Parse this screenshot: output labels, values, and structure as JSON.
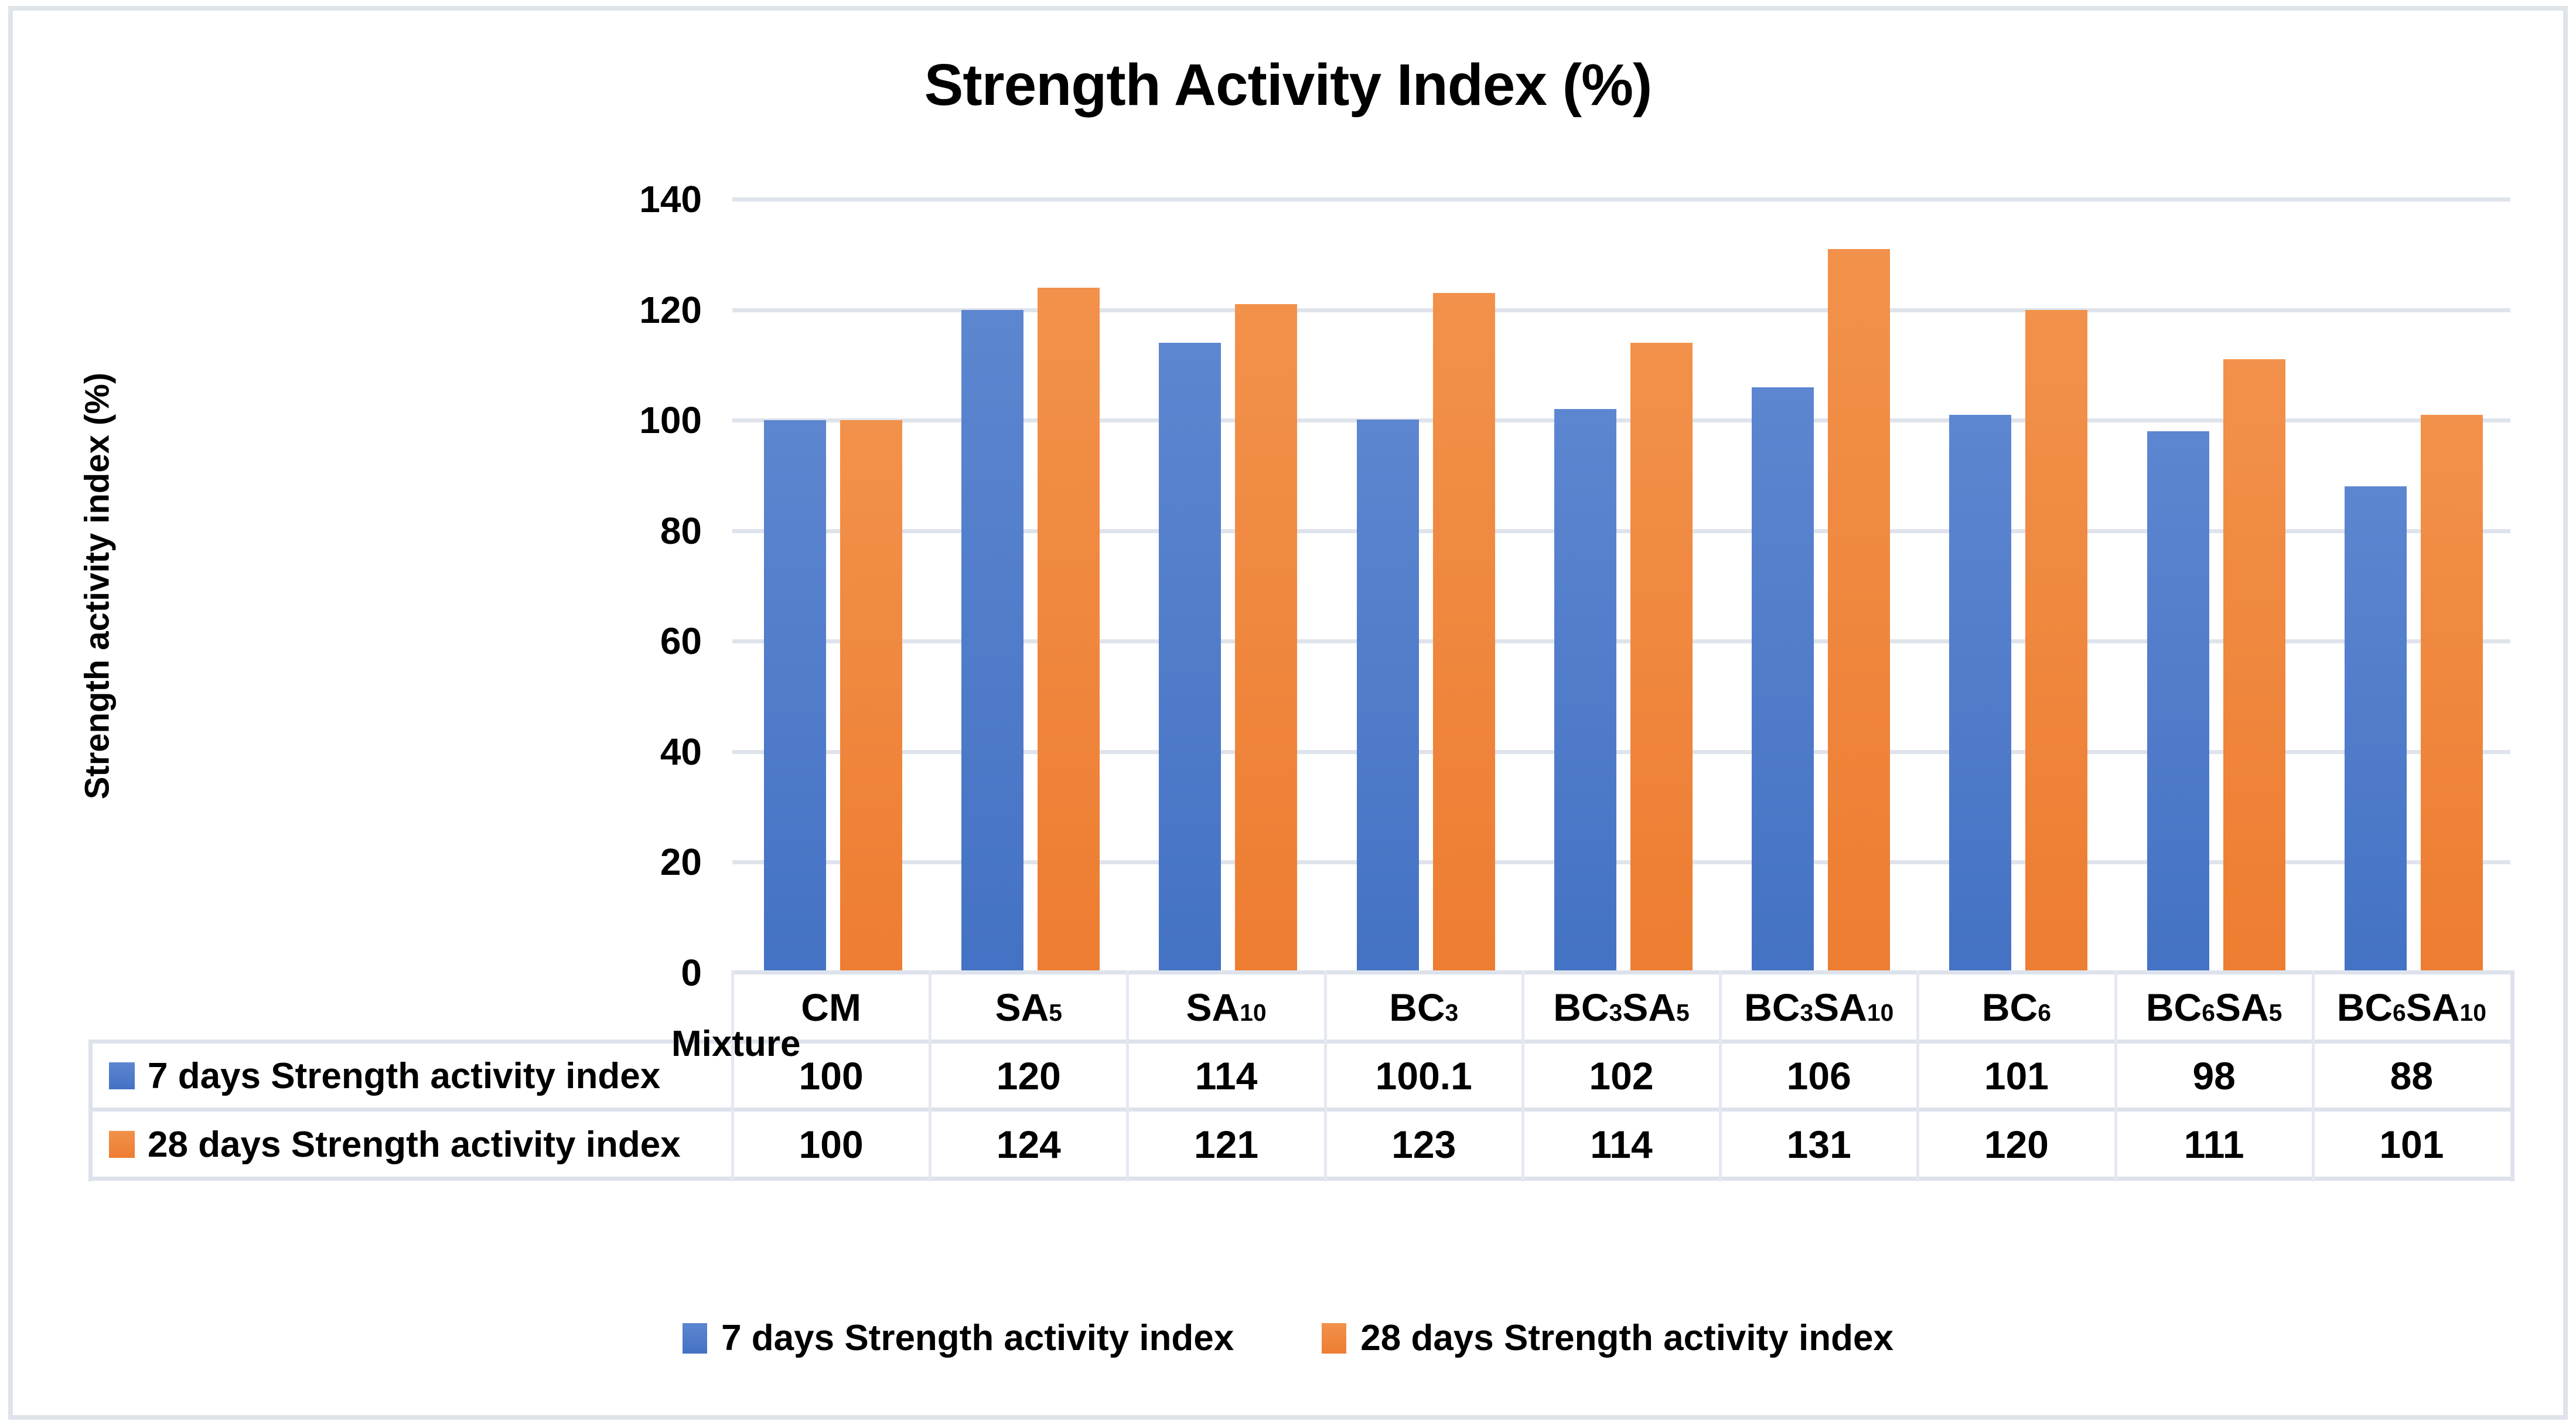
{
  "title": "Strength Activity Index (%)",
  "y_axis_title": "Strength activity index (%)",
  "x_axis_title": "Mixture",
  "colors": {
    "series1": "#4472C4",
    "series1_light": "#5d86d0",
    "series2": "#ED7D31",
    "series2_light": "#f2914b",
    "gridline": "#dfe3ec",
    "table_border": "#dde2ec",
    "figure_border": "#dfe3ea"
  },
  "chart_data": {
    "type": "bar",
    "categories": [
      {
        "id": "CM",
        "segments": [
          {
            "t": "CM"
          }
        ]
      },
      {
        "id": "SA5",
        "segments": [
          {
            "t": "SA"
          },
          {
            "t": "5",
            "sub": true
          }
        ]
      },
      {
        "id": "SA10",
        "segments": [
          {
            "t": "SA"
          },
          {
            "t": "10",
            "sub": true
          }
        ]
      },
      {
        "id": "BC3",
        "segments": [
          {
            "t": "BC"
          },
          {
            "t": "3",
            "sub": true
          }
        ]
      },
      {
        "id": "BC3SA5",
        "segments": [
          {
            "t": "BC"
          },
          {
            "t": "3",
            "sub": true
          },
          {
            "t": "SA"
          },
          {
            "t": "5",
            "sub": true
          }
        ]
      },
      {
        "id": "BC3SA10",
        "segments": [
          {
            "t": "BC"
          },
          {
            "t": "3",
            "sub": true
          },
          {
            "t": "SA"
          },
          {
            "t": "10",
            "sub": true
          }
        ]
      },
      {
        "id": "BC6",
        "segments": [
          {
            "t": "BC"
          },
          {
            "t": "6",
            "sub": true
          }
        ]
      },
      {
        "id": "BC6SA5",
        "segments": [
          {
            "t": "BC"
          },
          {
            "t": "6",
            "sub": true
          },
          {
            "t": "SA"
          },
          {
            "t": "5",
            "sub": true
          }
        ]
      },
      {
        "id": "BC6SA10",
        "segments": [
          {
            "t": "BC"
          },
          {
            "t": "6",
            "sub": true
          },
          {
            "t": "SA"
          },
          {
            "t": "10",
            "sub": true
          }
        ]
      }
    ],
    "series": [
      {
        "name": "7 days Strength activity index",
        "values": [
          100,
          120,
          114,
          100.1,
          102,
          106,
          101,
          98,
          88
        ]
      },
      {
        "name": "28 days Strength activity index",
        "values": [
          100,
          124,
          121,
          123,
          114,
          131,
          120,
          111,
          101
        ]
      }
    ],
    "ylim": [
      0,
      140
    ],
    "y_ticks": [
      0,
      20,
      40,
      60,
      80,
      100,
      120,
      140
    ],
    "grid": true,
    "legend_position": "bottom",
    "data_table_shown": true
  }
}
